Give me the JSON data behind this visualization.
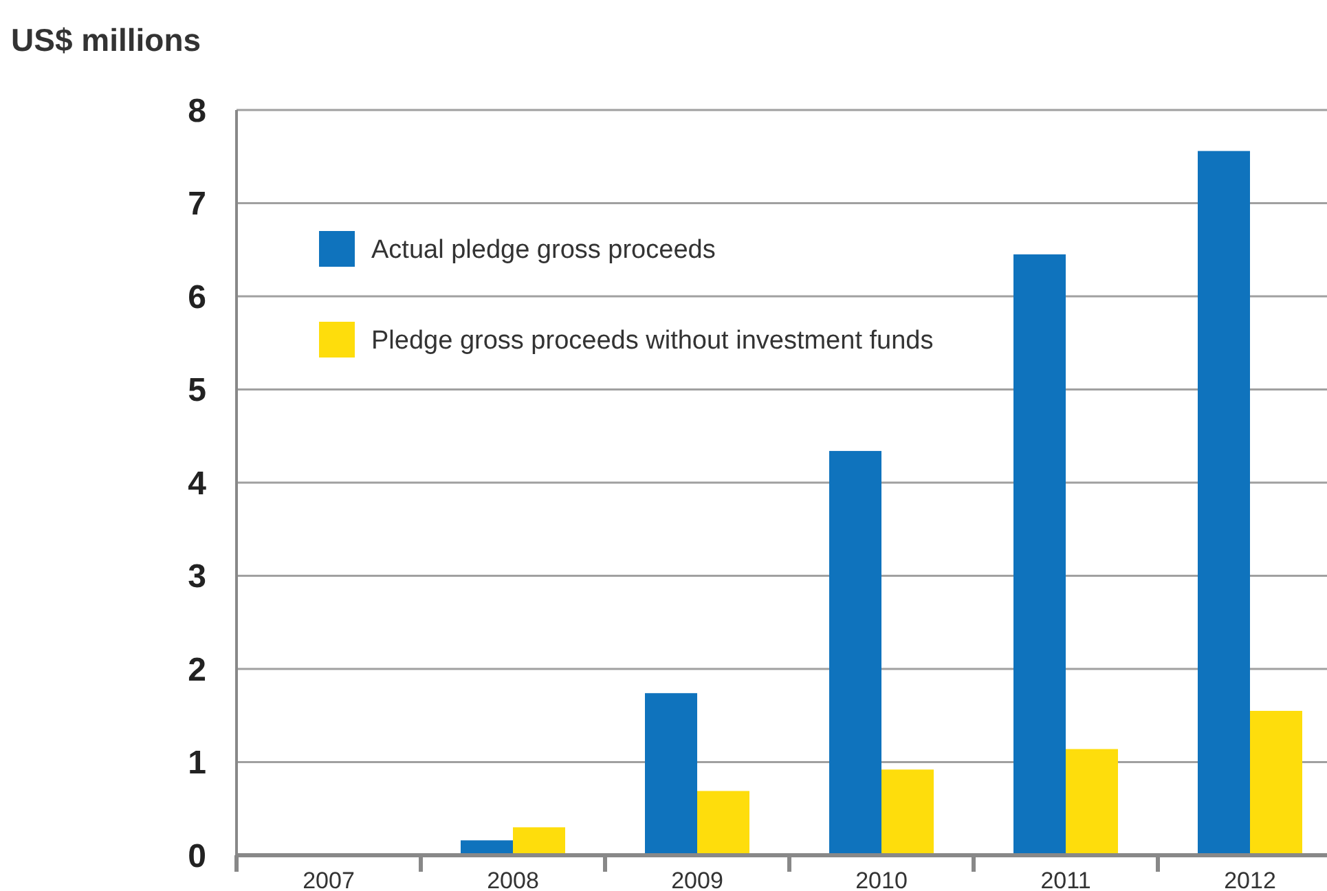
{
  "chart_data": {
    "type": "bar",
    "ylabel": "US$ millions",
    "categories": [
      "2007",
      "2008",
      "2009",
      "2010",
      "2011",
      "2012"
    ],
    "series": [
      {
        "name": "Actual pledge gross proceeds",
        "color": "#0f73bd",
        "values": [
          0,
          0.16,
          1.74,
          4.34,
          6.45,
          7.56
        ]
      },
      {
        "name": "Pledge gross proceeds without investment funds",
        "color": "#fedd0c",
        "values": [
          0,
          0.3,
          0.69,
          0.92,
          1.14,
          1.55
        ]
      }
    ],
    "ylim": [
      0,
      8
    ],
    "yticks": [
      0,
      1,
      2,
      3,
      4,
      5,
      6,
      7,
      8
    ],
    "grid": "y",
    "legend": "top left"
  }
}
